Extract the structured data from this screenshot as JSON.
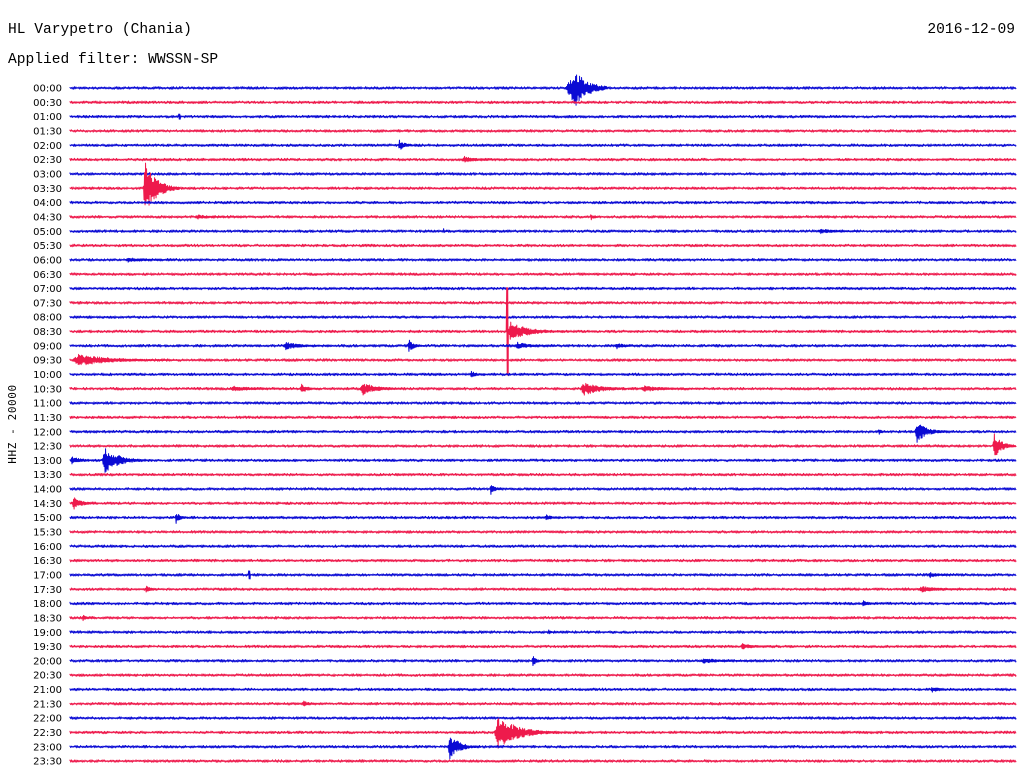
{
  "chart_data": {
    "type": "line",
    "title": "HL Varypetro (Chania)",
    "date": "2016-12-09",
    "subtitle": "Applied filter: WWSSN-SP",
    "ylabel": "HHZ - 20000",
    "scale": 20000,
    "noise_counts": 1800,
    "trace_colors": [
      "#0a0ad4",
      "#ee1a4c"
    ],
    "rows": [
      {
        "label": "00:00",
        "events": [
          {
            "onset": "00:15:42",
            "dur_s": 80,
            "amp": 25000,
            "rise_s": 20
          }
        ]
      },
      {
        "label": "00:30",
        "events": []
      },
      {
        "label": "01:00",
        "events": [
          {
            "onset": "01:03:26",
            "dur_s": 4,
            "amp": 3500
          }
        ]
      },
      {
        "label": "01:30",
        "events": []
      },
      {
        "label": "02:00",
        "events": [
          {
            "onset": "02:10:24",
            "dur_s": 38,
            "amp": 7500
          }
        ]
      },
      {
        "label": "02:30",
        "events": [
          {
            "onset": "02:42:26",
            "dur_s": 76,
            "amp": 4500
          }
        ]
      },
      {
        "label": "03:00",
        "events": []
      },
      {
        "label": "03:30",
        "events": [
          {
            "onset": "03:32:19",
            "dur_s": 70,
            "amp": 36000
          }
        ]
      },
      {
        "label": "04:00",
        "events": []
      },
      {
        "label": "04:30",
        "events": [
          {
            "onset": "04:33:58",
            "dur_s": 95,
            "amp": 3000
          },
          {
            "onset": "04:46:30",
            "dur_s": 20,
            "amp": 4500
          }
        ]
      },
      {
        "label": "05:00",
        "events": [
          {
            "onset": "05:11:50",
            "dur_s": 10,
            "amp": 3500
          },
          {
            "onset": "05:23:43",
            "dur_s": 80,
            "amp": 3500
          }
        ]
      },
      {
        "label": "05:30",
        "events": []
      },
      {
        "label": "06:00",
        "events": [
          {
            "onset": "06:01:45",
            "dur_s": 95,
            "amp": 3200
          }
        ]
      },
      {
        "label": "06:30",
        "events": []
      },
      {
        "label": "07:00",
        "events": []
      },
      {
        "label": "07:30",
        "events": []
      },
      {
        "label": "08:00",
        "events": []
      },
      {
        "label": "08:30",
        "events": [
          {
            "onset": "08:43:50",
            "dur_s": 4,
            "amp": 61000
          },
          {
            "onset": "08:43:52",
            "dur_s": 110,
            "amp": 13000
          }
        ]
      },
      {
        "label": "09:00",
        "events": [
          {
            "onset": "09:06:45",
            "dur_s": 90,
            "amp": 5500
          },
          {
            "onset": "09:10:43",
            "dur_s": 32,
            "amp": 8500
          },
          {
            "onset": "09:14:07",
            "dur_s": 75,
            "amp": 5000
          },
          {
            "onset": "09:17:17",
            "dur_s": 48,
            "amp": 4500
          }
        ]
      },
      {
        "label": "09:30",
        "events": [
          {
            "onset": "09:30:04",
            "dur_s": 205,
            "amp": 8000
          }
        ]
      },
      {
        "label": "10:00",
        "events": [
          {
            "onset": "10:12:41",
            "dur_s": 38,
            "amp": 4500
          }
        ]
      },
      {
        "label": "10:30",
        "events": [
          {
            "onset": "10:35:04",
            "dur_s": 130,
            "amp": 3500
          },
          {
            "onset": "10:37:18",
            "dur_s": 40,
            "amp": 6500
          },
          {
            "onset": "10:39:12",
            "dur_s": 80,
            "amp": 9000
          },
          {
            "onset": "10:46:11",
            "dur_s": 115,
            "amp": 9000
          },
          {
            "onset": "10:48:05",
            "dur_s": 130,
            "amp": 4000
          }
        ]
      },
      {
        "label": "11:00",
        "events": []
      },
      {
        "label": "11:30",
        "events": []
      },
      {
        "label": "12:00",
        "events": [
          {
            "onset": "12:25:38",
            "dur_s": 20,
            "amp": 4000
          },
          {
            "onset": "12:26:48",
            "dur_s": 60,
            "amp": 15000
          }
        ]
      },
      {
        "label": "12:30",
        "events": [
          {
            "onset": "12:59:16",
            "dur_s": 45,
            "amp": 17000
          }
        ]
      },
      {
        "label": "13:00",
        "events": [
          {
            "onset": "13:00:00",
            "dur_s": 60,
            "amp": 5000
          },
          {
            "onset": "13:01:01",
            "dur_s": 91,
            "amp": 17000
          }
        ]
      },
      {
        "label": "13:30",
        "events": []
      },
      {
        "label": "14:00",
        "events": [
          {
            "onset": "14:13:19",
            "dur_s": 24,
            "amp": 8000
          }
        ]
      },
      {
        "label": "14:30",
        "events": [
          {
            "onset": "14:30:04",
            "dur_s": 50,
            "amp": 8500
          }
        ]
      },
      {
        "label": "15:00",
        "events": [
          {
            "onset": "15:03:20",
            "dur_s": 25,
            "amp": 8500
          },
          {
            "onset": "15:15:04",
            "dur_s": 38,
            "amp": 4000
          }
        ]
      },
      {
        "label": "15:30",
        "events": []
      },
      {
        "label": "16:00",
        "events": []
      },
      {
        "label": "16:30",
        "events": []
      },
      {
        "label": "17:00",
        "events": [
          {
            "onset": "17:05:39",
            "dur_s": 4,
            "amp": 5500
          },
          {
            "onset": "17:27:13",
            "dur_s": 57,
            "amp": 4000
          }
        ]
      },
      {
        "label": "17:30",
        "events": [
          {
            "onset": "17:32:23",
            "dur_s": 32,
            "amp": 4500
          },
          {
            "onset": "17:56:54",
            "dur_s": 115,
            "amp": 4000
          }
        ]
      },
      {
        "label": "18:00",
        "events": [
          {
            "onset": "18:25:07",
            "dur_s": 38,
            "amp": 4000
          }
        ]
      },
      {
        "label": "18:30",
        "events": [
          {
            "onset": "18:30:23",
            "dur_s": 27,
            "amp": 4000
          }
        ]
      },
      {
        "label": "19:00",
        "events": [
          {
            "onset": "19:15:10",
            "dur_s": 15,
            "amp": 3000
          }
        ]
      },
      {
        "label": "19:30",
        "events": [
          {
            "onset": "19:51:15",
            "dur_s": 76,
            "amp": 4000
          }
        ]
      },
      {
        "label": "20:00",
        "events": [
          {
            "onset": "20:14:39",
            "dur_s": 25,
            "amp": 7000
          },
          {
            "onset": "20:19:59",
            "dur_s": 115,
            "amp": 3500
          }
        ]
      },
      {
        "label": "20:30",
        "events": []
      },
      {
        "label": "21:00",
        "events": [
          {
            "onset": "21:27:17",
            "dur_s": 48,
            "amp": 4000
          }
        ]
      },
      {
        "label": "21:30",
        "events": [
          {
            "onset": "21:37:22",
            "dur_s": 34,
            "amp": 4000
          }
        ]
      },
      {
        "label": "22:00",
        "events": []
      },
      {
        "label": "22:30",
        "events": [
          {
            "onset": "22:43:27",
            "dur_s": 125,
            "amp": 22000
          }
        ]
      },
      {
        "label": "23:00",
        "events": [
          {
            "onset": "23:11:59",
            "dur_s": 61,
            "amp": 17000
          }
        ]
      },
      {
        "label": "23:30",
        "events": []
      }
    ]
  }
}
